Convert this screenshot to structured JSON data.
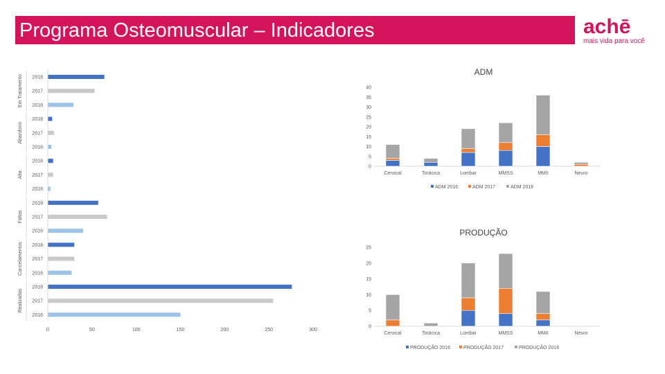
{
  "header": {
    "title": "Programa Osteomuscular – Indicadores",
    "logo_text": "achē",
    "logo_tagline": "mais vida para você"
  },
  "colors": {
    "brand": "#d4145a",
    "series_2016": "#9dc3e6",
    "series_2017": "#c9c9c9",
    "series_2018": "#4472c4",
    "stack_2016": "#4472c4",
    "stack_2017": "#ed7d31",
    "stack_2018": "#a5a5a5"
  },
  "chart_data": [
    {
      "id": "indicadores",
      "type": "bar",
      "orientation": "horizontal",
      "xlim": [
        0,
        300
      ],
      "xticks": [
        "0",
        "50",
        "100",
        "150",
        "200",
        "250",
        "300"
      ],
      "groups": [
        {
          "name": "Em Tratamento",
          "rows": [
            {
              "year": "2018",
              "value": 64
            },
            {
              "year": "2017",
              "value": 53
            },
            {
              "year": "2016",
              "value": 29
            }
          ]
        },
        {
          "name": "Abandono",
          "rows": [
            {
              "year": "2018",
              "value": 5
            },
            {
              "year": "2017",
              "value": 7
            },
            {
              "year": "2016",
              "value": 4
            }
          ]
        },
        {
          "name": "Alta",
          "rows": [
            {
              "year": "2018",
              "value": 6
            },
            {
              "year": "2017",
              "value": 6
            },
            {
              "year": "2016",
              "value": 3
            }
          ]
        },
        {
          "name": "Faltas",
          "rows": [
            {
              "year": "2018",
              "value": 57
            },
            {
              "year": "2017",
              "value": 67
            },
            {
              "year": "2016",
              "value": 40
            }
          ]
        },
        {
          "name": "Cancelamentos",
          "rows": [
            {
              "year": "2018",
              "value": 30
            },
            {
              "year": "2017",
              "value": 30
            },
            {
              "year": "2016",
              "value": 27
            }
          ]
        },
        {
          "name": "Realizadas",
          "rows": [
            {
              "year": "2018",
              "value": 276
            },
            {
              "year": "2017",
              "value": 255
            },
            {
              "year": "2016",
              "value": 150
            }
          ]
        }
      ]
    },
    {
      "id": "adm",
      "type": "bar",
      "stacked": true,
      "title": "ADM",
      "categories": [
        "Cervical",
        "Torácica",
        "Lombar",
        "MMSS",
        "MMII",
        "Neuro"
      ],
      "ylim": [
        0,
        40
      ],
      "yticks": [
        "0",
        "5",
        "10",
        "15",
        "20",
        "25",
        "30",
        "35",
        "40"
      ],
      "series": [
        {
          "name": "ADM 2016",
          "values": [
            3,
            2,
            7,
            8,
            10,
            0
          ]
        },
        {
          "name": "ADM 2017",
          "values": [
            1,
            0,
            2,
            4,
            6,
            1
          ]
        },
        {
          "name": "ADM 2018",
          "values": [
            7,
            2,
            10,
            10,
            20,
            1
          ]
        }
      ]
    },
    {
      "id": "producao",
      "type": "bar",
      "stacked": true,
      "title": "PRODUÇÃO",
      "categories": [
        "Cervical",
        "Torácica",
        "Lombar",
        "MMSS",
        "MMII",
        "Neuro"
      ],
      "ylim": [
        0,
        25
      ],
      "yticks": [
        "0",
        "5",
        "10",
        "15",
        "20",
        "25"
      ],
      "series": [
        {
          "name": "PRODUÇÃO 2016",
          "values": [
            0,
            0,
            5,
            4,
            2,
            0
          ]
        },
        {
          "name": "PRODUÇÃO 2017",
          "values": [
            2,
            0,
            4,
            8,
            2,
            0
          ]
        },
        {
          "name": "PRODUÇÃO 2018",
          "values": [
            8,
            1,
            11,
            11,
            7,
            0
          ]
        }
      ]
    }
  ]
}
